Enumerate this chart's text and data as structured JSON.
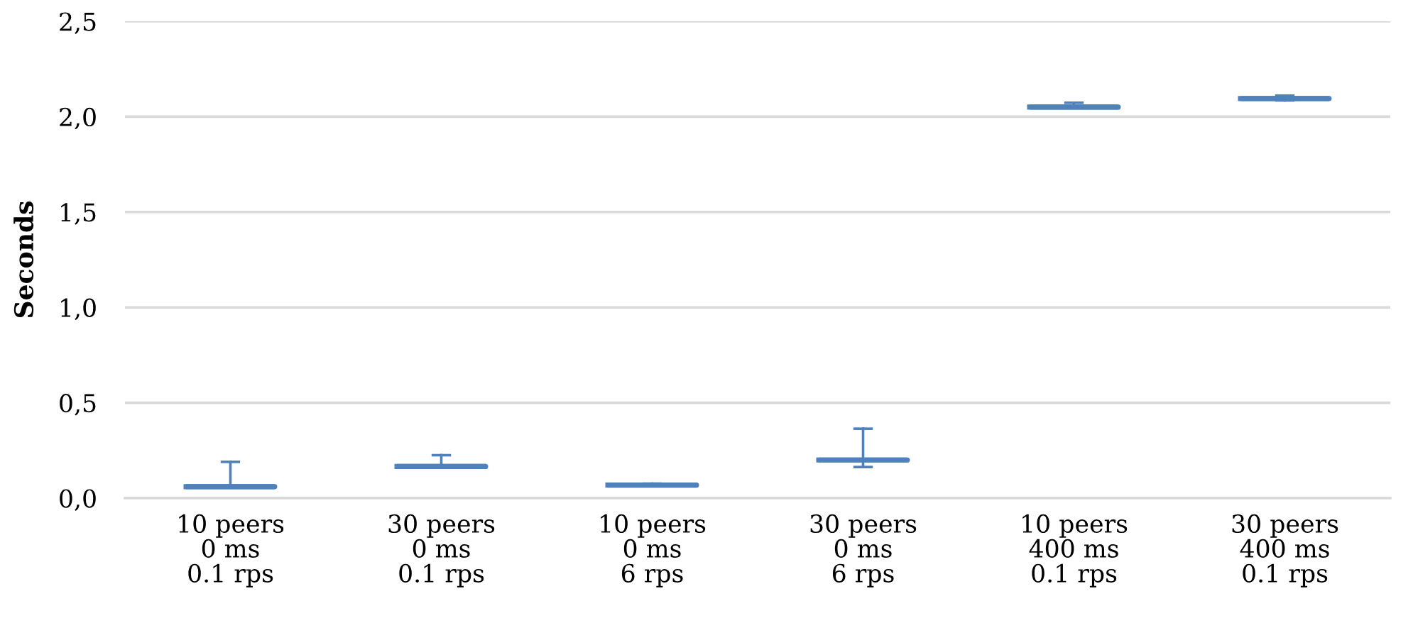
{
  "chart_data": {
    "type": "box",
    "ylabel": "Seconds",
    "categories": [
      "10 peers\n0 ms\n0.1 rps",
      "30 peers\n0 ms\n0.1 rps",
      "10 peers\n0 ms\n6 rps",
      "30 peers\n0 ms\n6 rps",
      "10 peers\n400 ms\n0.1 rps",
      "30 peers\n400 ms\n0.1 rps"
    ],
    "series": [
      {
        "color": "#4f81bd",
        "boxes": [
          {
            "low": 0.06,
            "q1": 0.06,
            "median": 0.06,
            "q3": 0.06,
            "high": 0.19
          },
          {
            "low": 0.166,
            "q1": 0.166,
            "median": 0.166,
            "q3": 0.166,
            "high": 0.225
          },
          {
            "low": 0.063,
            "q1": 0.068,
            "median": 0.068,
            "q3": 0.068,
            "high": 0.076
          },
          {
            "low": 0.163,
            "q1": 0.2,
            "median": 0.2,
            "q3": 0.2,
            "high": 0.364
          },
          {
            "low": 2.05,
            "q1": 2.05,
            "median": 2.05,
            "q3": 2.05,
            "high": 2.073
          },
          {
            "low": 2.085,
            "q1": 2.095,
            "median": 2.095,
            "q3": 2.095,
            "high": 2.11
          }
        ]
      }
    ],
    "ylim": [
      0,
      2.5
    ],
    "yticks": [
      {
        "value": 0,
        "label": "0,0"
      },
      {
        "value": 0.5,
        "label": "0,5"
      },
      {
        "value": 1,
        "label": "1,0"
      },
      {
        "value": 1.5,
        "label": "1,5"
      },
      {
        "value": 2,
        "label": "2,0"
      },
      {
        "value": 2.5,
        "label": "2,5"
      }
    ],
    "grid": "y"
  }
}
